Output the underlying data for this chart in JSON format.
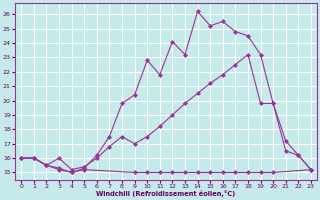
{
  "xlabel": "Windchill (Refroidissement éolien,°C)",
  "background_color": "#c6e9e9",
  "grid_color": "#ffffff",
  "line_color": "#993399",
  "marker": "D",
  "markersize": 2,
  "linewidth": 0.8,
  "xlim": [
    -0.5,
    23.5
  ],
  "ylim": [
    14.5,
    26.8
  ],
  "yticks": [
    15,
    16,
    17,
    18,
    19,
    20,
    21,
    22,
    23,
    24,
    25,
    26
  ],
  "xticks": [
    0,
    1,
    2,
    3,
    4,
    5,
    6,
    7,
    8,
    9,
    10,
    11,
    12,
    13,
    14,
    15,
    16,
    17,
    18,
    19,
    20,
    21,
    22,
    23
  ],
  "line1_x": [
    0,
    1,
    2,
    3,
    4,
    5,
    6,
    7,
    8,
    9,
    10,
    11,
    12,
    13,
    14,
    15,
    16,
    17,
    18,
    19,
    20,
    21,
    22,
    23
  ],
  "line1_y": [
    16,
    16,
    15.5,
    15.3,
    15.0,
    15.3,
    16.2,
    17.5,
    19.8,
    20.4,
    22.8,
    21.8,
    24.1,
    23.2,
    26.2,
    25.2,
    25.5,
    24.8,
    24.5,
    23.2,
    19.8,
    16.5,
    16.2,
    15.2
  ],
  "line2_x": [
    0,
    1,
    2,
    3,
    4,
    5,
    9,
    10,
    11,
    12,
    13,
    14,
    15,
    16,
    17,
    18,
    19,
    20,
    23
  ],
  "line2_y": [
    16,
    16,
    15.5,
    15.2,
    15.0,
    15.2,
    15.0,
    15.0,
    15.0,
    15.0,
    15.0,
    15.0,
    15.0,
    15.0,
    15.0,
    15.0,
    15.0,
    15.0,
    15.2
  ],
  "line3_x": [
    0,
    1,
    2,
    3,
    4,
    5,
    6,
    7,
    8,
    9,
    10,
    11,
    12,
    13,
    14,
    15,
    16,
    17,
    18,
    19,
    20,
    21,
    22,
    23
  ],
  "line3_y": [
    16,
    16,
    15.5,
    16.0,
    15.2,
    15.4,
    16.0,
    16.8,
    17.5,
    17.0,
    17.5,
    18.2,
    19.0,
    19.8,
    20.5,
    21.2,
    21.8,
    22.5,
    23.2,
    19.8,
    19.8,
    17.2,
    16.2,
    15.2
  ]
}
